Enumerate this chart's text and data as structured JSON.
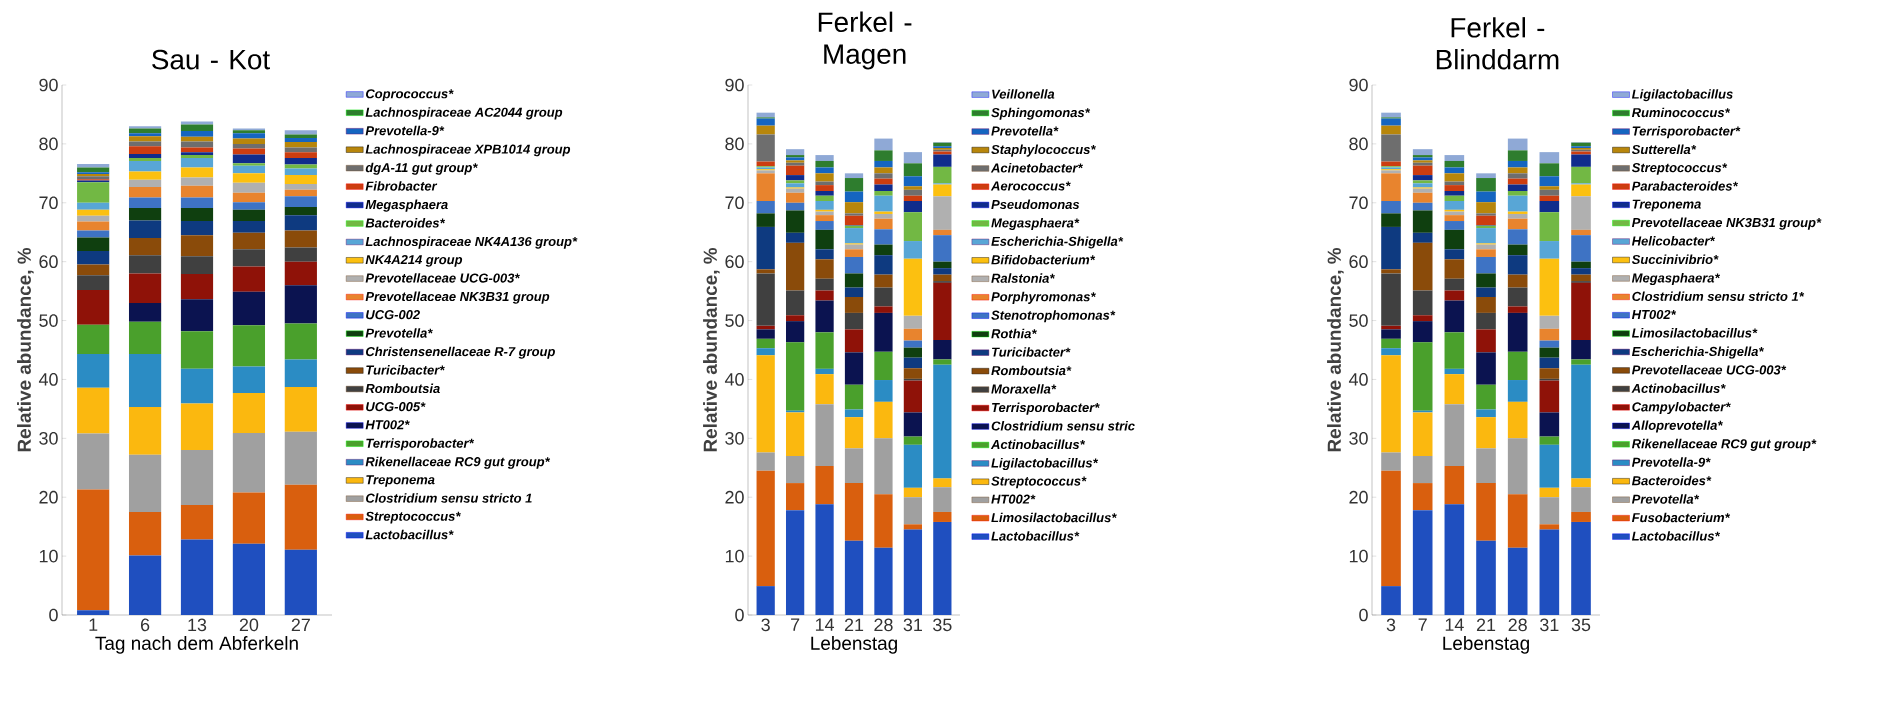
{
  "chart_data": [
    {
      "type": "bar",
      "stacked": true,
      "title": "Sau - Kot",
      "xlabel": "Tag nach dem Abferkeln",
      "ylabel": "Relative abundance, %",
      "categories": [
        "1",
        "6",
        "13",
        "20",
        "27"
      ],
      "ylim": [
        0,
        90
      ],
      "yticks": [
        0,
        10,
        20,
        30,
        40,
        50,
        60,
        70,
        80,
        90
      ],
      "legend": "right",
      "series": [
        {
          "name": "Lactobacillus*",
          "color": "#1f4fbf",
          "values": [
            0.8,
            10.1,
            12.8,
            12.1,
            11.1
          ]
        },
        {
          "name": "Streptococcus*",
          "color": "#d95f0e",
          "values": [
            20.5,
            7.4,
            5.9,
            8.7,
            11.0
          ]
        },
        {
          "name": "Clostridium sensu stricto 1",
          "color": "#a0a0a0",
          "values": [
            9.5,
            9.7,
            9.3,
            10.1,
            9.0
          ]
        },
        {
          "name": "Treponema",
          "color": "#fbb80f",
          "values": [
            7.8,
            8.1,
            7.9,
            6.8,
            7.6
          ]
        },
        {
          "name": "Rikenellaceae RC9 gut group*",
          "color": "#2b8cc4",
          "values": [
            5.7,
            9.0,
            5.9,
            4.5,
            4.7
          ]
        },
        {
          "name": "Terrisporobacter*",
          "color": "#4aa02c",
          "values": [
            5.0,
            5.5,
            6.4,
            7.0,
            6.1
          ]
        },
        {
          "name": "HT002*",
          "color": "#0b1350",
          "values": [
            0,
            3.2,
            5.4,
            5.7,
            6.5
          ]
        },
        {
          "name": "UCG-005*",
          "color": "#8f1208",
          "values": [
            5.9,
            5.0,
            4.3,
            4.3,
            4.0
          ]
        },
        {
          "name": "Romboutsia",
          "color": "#404040",
          "values": [
            2.5,
            3.1,
            3.0,
            2.9,
            2.4
          ]
        },
        {
          "name": "Turicibacter*",
          "color": "#8a4b0a",
          "values": [
            1.8,
            2.9,
            3.6,
            2.8,
            2.9
          ]
        },
        {
          "name": "Christensenellaceae R-7 group",
          "color": "#0e3a80",
          "values": [
            2.3,
            3.0,
            2.4,
            2.0,
            2.6
          ]
        },
        {
          "name": "Prevotella*",
          "color": "#0f3f0f",
          "values": [
            2.3,
            2.1,
            2.2,
            1.9,
            1.4
          ]
        },
        {
          "name": "UCG-002",
          "color": "#3e73c4",
          "values": [
            1.2,
            1.8,
            1.8,
            1.3,
            1.8
          ]
        },
        {
          "name": "Prevotellaceae NK3B31 group",
          "color": "#e8842e",
          "values": [
            1.5,
            1.8,
            2.0,
            1.6,
            1.1
          ]
        },
        {
          "name": "Prevotellaceae UCG-003*",
          "color": "#b0b0b0",
          "values": [
            1.0,
            1.2,
            1.4,
            1.7,
            1.0
          ]
        },
        {
          "name": "NK4A214 group",
          "color": "#fcc010",
          "values": [
            1.0,
            1.4,
            1.7,
            1.6,
            1.5
          ]
        },
        {
          "name": "Lachnospiraceae NK4A136 group*",
          "color": "#58a6d6",
          "values": [
            1.2,
            1.8,
            1.6,
            1.3,
            1.1
          ]
        },
        {
          "name": "Bacteroides*",
          "color": "#72b844",
          "values": [
            3.5,
            0.5,
            0.5,
            0.4,
            0.7
          ]
        },
        {
          "name": "Megasphaera",
          "color": "#102c8c",
          "values": [
            0.3,
            0.7,
            0.5,
            1.5,
            1.1
          ]
        },
        {
          "name": "Fibrobacter",
          "color": "#cc3d10",
          "values": [
            0.2,
            1.3,
            0.8,
            1.0,
            1.0
          ]
        },
        {
          "name": "dgA-11 gut group*",
          "color": "#6e6e6e",
          "values": [
            0.5,
            0.8,
            1.0,
            0.8,
            0.8
          ]
        },
        {
          "name": "Lachnospiraceae XPB1014 group",
          "color": "#b8860b",
          "values": [
            0.4,
            0.9,
            0.8,
            0.9,
            0.9
          ]
        },
        {
          "name": "Prevotella-9*",
          "color": "#1565c0",
          "values": [
            0.3,
            0.5,
            1.0,
            0.9,
            0.7
          ]
        },
        {
          "name": "Lachnospiraceae AC2044 group",
          "color": "#2e7d2e",
          "values": [
            0.8,
            0.8,
            1.1,
            0.5,
            0.6
          ]
        },
        {
          "name": "Coprococcus*",
          "color": "#8fa9d6",
          "values": [
            0.6,
            0.4,
            0.5,
            0.3,
            0.7
          ]
        }
      ]
    },
    {
      "type": "bar",
      "stacked": true,
      "title": "Ferkel - Magen",
      "xlabel": "Lebenstag",
      "ylabel": "Relative abundance, %",
      "categories": [
        "3",
        "7",
        "14",
        "21",
        "28",
        "31",
        "35"
      ],
      "ylim": [
        0,
        90
      ],
      "yticks": [
        0,
        10,
        20,
        30,
        40,
        50,
        60,
        70,
        80,
        90
      ],
      "legend": "right",
      "series": [
        {
          "name": "Lactobacillus*",
          "color": "#1f4fbf",
          "values": [
            4.9,
            17.8,
            18.8,
            12.6,
            11.4,
            14.5,
            15.8
          ]
        },
        {
          "name": "Limosilactobacillus*",
          "color": "#d95f0e",
          "values": [
            19.6,
            4.6,
            6.5,
            9.8,
            9.1,
            0.9,
            1.7
          ]
        },
        {
          "name": "HT002*",
          "color": "#a0a0a0",
          "values": [
            3.1,
            4.6,
            10.5,
            5.9,
            9.5,
            4.6,
            4.2
          ]
        },
        {
          "name": "Streptococcus*",
          "color": "#fbb80f",
          "values": [
            16.5,
            7.4,
            5.1,
            5.3,
            6.2,
            1.6,
            1.5
          ]
        },
        {
          "name": "Ligilactobacillus*",
          "color": "#2b8cc4",
          "values": [
            1.2,
            0.3,
            0.9,
            1.3,
            3.7,
            7.3,
            19.3
          ]
        },
        {
          "name": "Actinobacillus*",
          "color": "#4aa02c",
          "values": [
            1.6,
            11.6,
            6.2,
            4.2,
            4.8,
            1.4,
            0.9
          ]
        },
        {
          "name": "Clostridium sensu stric",
          "color": "#0b1350",
          "values": [
            1.6,
            3.6,
            5.4,
            5.5,
            6.6,
            4.1,
            3.3
          ]
        },
        {
          "name": "Terrisporobacter*",
          "color": "#8f1208",
          "values": [
            0.6,
            1.0,
            1.7,
            3.9,
            1.1,
            5.4,
            9.7
          ]
        },
        {
          "name": "Moraxella*",
          "color": "#404040",
          "values": [
            8.9,
            4.2,
            2.0,
            2.8,
            3.2,
            0.3,
            0.3
          ]
        },
        {
          "name": "Romboutsia*",
          "color": "#8a4b0a",
          "values": [
            0.7,
            8.1,
            3.3,
            2.7,
            2.2,
            1.8,
            1.1
          ]
        },
        {
          "name": "Turicibacter*",
          "color": "#0e3a80",
          "values": [
            7.2,
            1.7,
            1.7,
            1.6,
            3.3,
            1.8,
            1.1
          ]
        },
        {
          "name": "Rothia*",
          "color": "#0f3f0f",
          "values": [
            2.3,
            3.8,
            3.3,
            2.4,
            1.8,
            1.7,
            1.1
          ]
        },
        {
          "name": "Stenotrophomonas*",
          "color": "#3e73c4",
          "values": [
            2.1,
            1.3,
            1.5,
            2.8,
            2.6,
            1.2,
            4.5
          ]
        },
        {
          "name": "Porphyromonas*",
          "color": "#e8842e",
          "values": [
            4.7,
            1.7,
            1.0,
            1.3,
            1.8,
            2.0,
            0.9
          ]
        },
        {
          "name": "Ralstonia*",
          "color": "#b0b0b0",
          "values": [
            0.5,
            0.7,
            0.6,
            0.8,
            0.8,
            2.2,
            5.7
          ]
        },
        {
          "name": "Bifidobacterium*",
          "color": "#fcc010",
          "values": [
            0.2,
            0.2,
            0.3,
            0.2,
            0.4,
            9.7,
            2.0
          ]
        },
        {
          "name": "Escherichia-Shigella*",
          "color": "#58a6d6",
          "values": [
            0.3,
            0.7,
            1.5,
            2.6,
            2.7,
            3.0,
            0.2
          ]
        },
        {
          "name": "Megasphaera*",
          "color": "#72b844",
          "values": [
            0.2,
            0.5,
            0.9,
            0.4,
            0.8,
            4.9,
            2.8
          ]
        },
        {
          "name": "Pseudomonas",
          "color": "#102c8c",
          "values": [
            null,
            0.9,
            0.8,
            0.1,
            1.1,
            1.9,
            2.1
          ]
        },
        {
          "name": "Aerococcus*",
          "color": "#cc3d10",
          "values": [
            0.8,
            1.6,
            1.0,
            1.6,
            1.0,
            0.9,
            0.5
          ]
        },
        {
          "name": "Acinetobacter*",
          "color": "#6e6e6e",
          "values": [
            4.6,
            0.5,
            0.6,
            0.4,
            0.9,
            1.0,
            0.3
          ]
        },
        {
          "name": "Staphylococcus*",
          "color": "#b8860b",
          "values": [
            1.5,
            0.4,
            1.4,
            1.9,
            1.0,
            0.6,
            0.3
          ]
        },
        {
          "name": "Prevotella*",
          "color": "#1565c0",
          "values": [
            1.2,
            0.5,
            1.0,
            1.8,
            1.1,
            1.7,
            0.3
          ]
        },
        {
          "name": "Sphingomonas*",
          "color": "#2e7d2e",
          "values": [
            0.2,
            0.4,
            1.1,
            2.3,
            1.8,
            2.2,
            0.6
          ]
        },
        {
          "name": "Veillonella",
          "color": "#8fa9d6",
          "values": [
            0.8,
            1.0,
            1.0,
            0.8,
            2.0,
            1.9,
            0.1
          ]
        }
      ]
    },
    {
      "type": "bar",
      "stacked": true,
      "title": "Ferkel - Blinddarm",
      "xlabel": "Lebenstag",
      "ylabel": "Relative abundance, %",
      "categories": [
        "3",
        "7",
        "14",
        "21",
        "28",
        "31",
        "35"
      ],
      "ylim": [
        0,
        90
      ],
      "yticks": [
        0,
        10,
        20,
        30,
        40,
        50,
        60,
        70,
        80,
        90
      ],
      "legend": "right",
      "series": [
        {
          "name": "Lactobacillus*",
          "color": "#1f4fbf",
          "values": [
            4.9,
            17.8,
            18.8,
            12.6,
            11.4,
            14.5,
            15.8
          ]
        },
        {
          "name": "Fusobacterium*",
          "color": "#d95f0e",
          "values": [
            19.6,
            4.6,
            6.5,
            9.8,
            9.1,
            0.9,
            1.7
          ]
        },
        {
          "name": "Prevotella*",
          "color": "#a0a0a0",
          "values": [
            3.1,
            4.6,
            10.5,
            5.9,
            9.5,
            4.6,
            4.2
          ]
        },
        {
          "name": "Bacteroides*",
          "color": "#fbb80f",
          "values": [
            16.5,
            7.4,
            5.1,
            5.3,
            6.2,
            1.6,
            1.5
          ]
        },
        {
          "name": "Prevotella-9*",
          "color": "#2b8cc4",
          "values": [
            1.2,
            0.3,
            0.9,
            1.3,
            3.7,
            7.3,
            19.3
          ]
        },
        {
          "name": "Rikenellaceae RC9 gut group*",
          "color": "#4aa02c",
          "values": [
            1.6,
            11.6,
            6.2,
            4.2,
            4.8,
            1.4,
            0.9
          ]
        },
        {
          "name": "Alloprevotella*",
          "color": "#0b1350",
          "values": [
            1.6,
            3.6,
            5.4,
            5.5,
            6.6,
            4.1,
            3.3
          ]
        },
        {
          "name": "Campylobacter*",
          "color": "#8f1208",
          "values": [
            0.6,
            1.0,
            1.7,
            3.9,
            1.1,
            5.4,
            9.7
          ]
        },
        {
          "name": "Actinobacillus*",
          "color": "#404040",
          "values": [
            8.9,
            4.2,
            2.0,
            2.8,
            3.2,
            0.3,
            0.3
          ]
        },
        {
          "name": "Prevotellaceae UCG-003*",
          "color": "#8a4b0a",
          "values": [
            0.7,
            8.1,
            3.3,
            2.7,
            2.2,
            1.8,
            1.1
          ]
        },
        {
          "name": "Escherichia-Shigella*",
          "color": "#0e3a80",
          "values": [
            7.2,
            1.7,
            1.7,
            1.6,
            3.3,
            1.8,
            1.1
          ]
        },
        {
          "name": "Limosilactobacillus*",
          "color": "#0f3f0f",
          "values": [
            2.3,
            3.8,
            3.3,
            2.4,
            1.8,
            1.7,
            1.1
          ]
        },
        {
          "name": "HT002*",
          "color": "#3e73c4",
          "values": [
            2.1,
            1.3,
            1.5,
            2.8,
            2.6,
            1.2,
            4.5
          ]
        },
        {
          "name": "Clostridium sensu stricto 1*",
          "color": "#e8842e",
          "values": [
            4.7,
            1.7,
            1.0,
            1.3,
            1.8,
            2.0,
            0.9
          ]
        },
        {
          "name": "Megasphaera*",
          "color": "#b0b0b0",
          "values": [
            0.5,
            0.7,
            0.6,
            0.8,
            0.8,
            2.2,
            5.7
          ]
        },
        {
          "name": "Succinivibrio*",
          "color": "#fcc010",
          "values": [
            0.2,
            0.2,
            0.3,
            0.2,
            0.4,
            9.7,
            2.0
          ]
        },
        {
          "name": "Helicobacter*",
          "color": "#58a6d6",
          "values": [
            0.3,
            0.7,
            1.5,
            2.6,
            2.7,
            3.0,
            0.2
          ]
        },
        {
          "name": "Prevotellaceae NK3B31 group*",
          "color": "#72b844",
          "values": [
            0.2,
            0.5,
            0.9,
            0.4,
            0.8,
            4.9,
            2.8
          ]
        },
        {
          "name": "Treponema",
          "color": "#102c8c",
          "values": [
            null,
            0.9,
            0.8,
            0.1,
            1.1,
            1.9,
            2.1
          ]
        },
        {
          "name": "Parabacteroides*",
          "color": "#cc3d10",
          "values": [
            0.8,
            1.6,
            1.0,
            1.6,
            1.0,
            0.9,
            0.5
          ]
        },
        {
          "name": "Streptococcus*",
          "color": "#6e6e6e",
          "values": [
            4.6,
            0.5,
            0.6,
            0.4,
            0.9,
            1.0,
            0.3
          ]
        },
        {
          "name": "Sutterella*",
          "color": "#b8860b",
          "values": [
            1.5,
            0.4,
            1.4,
            1.9,
            1.0,
            0.6,
            0.3
          ]
        },
        {
          "name": "Terrisporobacter*",
          "color": "#1565c0",
          "values": [
            1.2,
            0.5,
            1.0,
            1.8,
            1.1,
            1.7,
            0.3
          ]
        },
        {
          "name": "Ruminococcus*",
          "color": "#2e7d2e",
          "values": [
            0.2,
            0.4,
            1.1,
            2.3,
            1.8,
            2.2,
            0.6
          ]
        },
        {
          "name": "Ligilactobacillus",
          "color": "#8fa9d6",
          "values": [
            0.8,
            1.0,
            1.0,
            0.8,
            2.0,
            1.9,
            0.1
          ]
        }
      ]
    }
  ]
}
